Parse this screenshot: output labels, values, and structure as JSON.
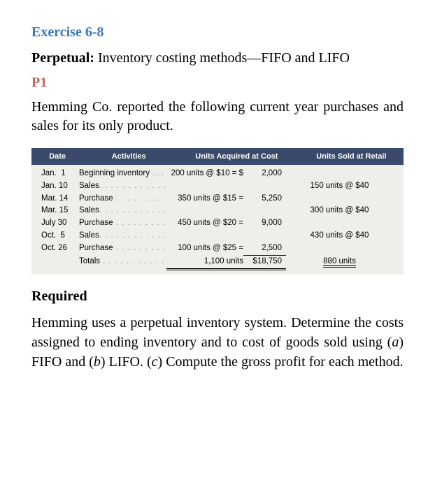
{
  "exercise_num": "Exercise 6-8",
  "title_bold": "Perpetual:",
  "title_rest": " Inventory costing methods—FIFO and LIFO",
  "p1": "P1",
  "intro": "Hemming Co. reported the following current year purchases and sales for its only product.",
  "headers": {
    "date": "Date",
    "activities": "Activities",
    "acquired": "Units Acquired at Cost",
    "sold": "Units Sold at Retail"
  },
  "rows": [
    {
      "date": "Jan.  1",
      "activity": "Beginning inventory",
      "dots": " ....",
      "acq_desc": "200 units @ $10 = $",
      "acq_amt": "2,000",
      "sold": ""
    },
    {
      "date": "Jan. 10",
      "activity": "Sales",
      "dots": ". . . . . . . . . . . . . . . .",
      "acq_desc": "",
      "acq_amt": "",
      "sold": "150 units @ $40"
    },
    {
      "date": "Mar. 14",
      "activity": "Purchase",
      "dots": " . . . . . . . . . . . .",
      "acq_desc": "350 units @ $15 =",
      "acq_amt": "5,250",
      "sold": ""
    },
    {
      "date": "Mar. 15",
      "activity": "Sales",
      "dots": ". . . . . . . . . . . . . . . .",
      "acq_desc": "",
      "acq_amt": "",
      "sold": "300 units @ $40"
    },
    {
      "date": "July 30",
      "activity": "Purchase",
      "dots": " . . . . . . . . . . . .",
      "acq_desc": "450 units @ $20 =",
      "acq_amt": "9,000",
      "sold": ""
    },
    {
      "date": "Oct.  5",
      "activity": "Sales",
      "dots": ". . . . . . . . . . . . . . . .",
      "acq_desc": "",
      "acq_amt": "",
      "sold": "430 units @ $40"
    },
    {
      "date": "Oct. 26",
      "activity": "Purchase",
      "dots": " . . . . . . . . . . . .",
      "acq_desc": "100 units @ $25 =",
      "acq_amt": "2,500",
      "sold": ""
    }
  ],
  "totals": {
    "label": "Totals",
    "dots": " . . . . . . . . . . . . . . .",
    "acq_desc": "1,100 units",
    "acq_amt": "$18,750",
    "sold": "880 units"
  },
  "required_heading": "Required",
  "required_text_1": "Hemming uses a perpetual inventory system. Determine the costs assigned to ending inventory and to cost of goods sold using (",
  "required_a": "a",
  "required_text_2": ") FIFO and (",
  "required_b": "b",
  "required_text_3": ") LIFO. (",
  "required_c": "c",
  "required_text_4": ") Compute the gross profit for each method.",
  "colors": {
    "header_bg": "#3a4a6b",
    "table_bg": "#efeeea",
    "exercise_color": "#3a7ab5",
    "p1_color": "#c9655f"
  }
}
